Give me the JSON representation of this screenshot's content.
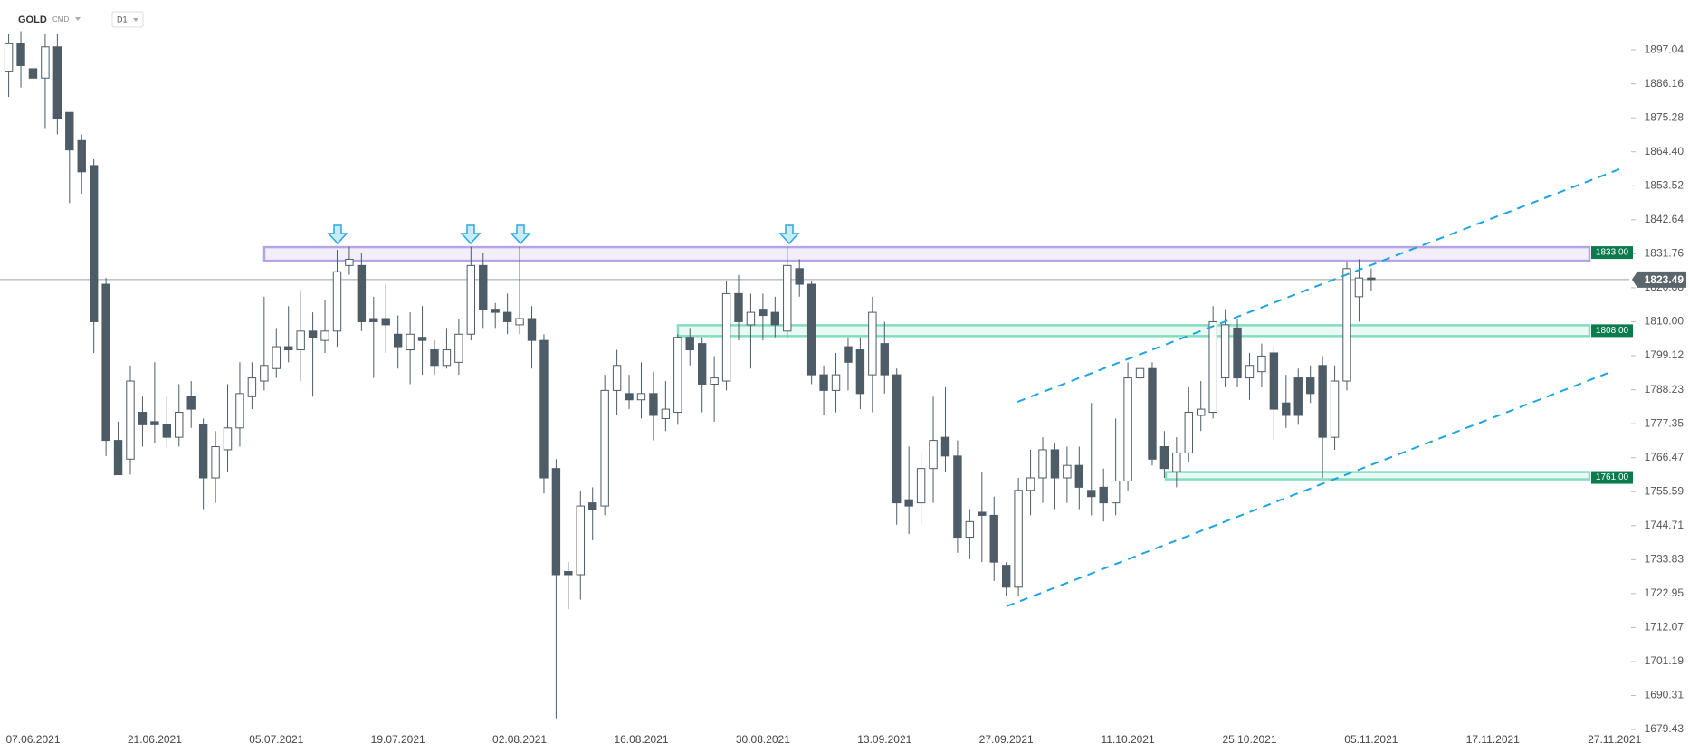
{
  "chart_data": {
    "type": "candlestick",
    "symbol": "GOLD",
    "market": "CMD",
    "timeframe": "D1",
    "categories": [
      null,
      null,
      "07.06.2021",
      null,
      null,
      null,
      null,
      null,
      null,
      null,
      null,
      null,
      "21.06.2021",
      null,
      null,
      null,
      null,
      null,
      null,
      null,
      null,
      null,
      "05.07.2021",
      null,
      null,
      null,
      null,
      null,
      null,
      null,
      null,
      null,
      "19.07.2021",
      null,
      null,
      null,
      null,
      null,
      null,
      null,
      null,
      null,
      "02.08.2021",
      null,
      null,
      null,
      null,
      null,
      null,
      null,
      null,
      null,
      "16.08.2021",
      null,
      null,
      null,
      null,
      null,
      null,
      null,
      null,
      null,
      "30.08.2021",
      null,
      null,
      null,
      null,
      null,
      null,
      null,
      null,
      null,
      "13.09.2021",
      null,
      null,
      null,
      null,
      null,
      null,
      null,
      null,
      null,
      "27.09.2021",
      null,
      null,
      null,
      null,
      null,
      null,
      null,
      null,
      null,
      "11.10.2021",
      null,
      null,
      null,
      null,
      null,
      null,
      null,
      null,
      null,
      "25.10.2021",
      null,
      null,
      null,
      null,
      null,
      null,
      null,
      null,
      null,
      "05.11.2021",
      null,
      null,
      null,
      null,
      null,
      null,
      null,
      null,
      null,
      "17.11.2021",
      null,
      null,
      null,
      null,
      null,
      null,
      null,
      null,
      null,
      "27.11.2021"
    ],
    "open": [
      1890,
      1899,
      1891,
      1888,
      1898,
      1877,
      1868,
      1860,
      1822,
      1772,
      1766,
      1781,
      1778,
      1777,
      1773,
      1786,
      1777,
      1760,
      1769,
      1776,
      1786,
      1791,
      1795,
      1802,
      1801,
      1807,
      1804,
      1807,
      1828,
      1828,
      1811,
      1811,
      1806,
      1801,
      1805,
      1801,
      1796,
      1797,
      1806,
      1828,
      1814,
      1813,
      1809,
      1811,
      1804,
      1763,
      1730,
      1729,
      1752,
      1751,
      1788,
      1787,
      1785,
      1787,
      1779,
      1781,
      1805,
      1803,
      1790,
      1791,
      1819,
      1809,
      1814,
      1813,
      1807,
      1827,
      1822,
      1793,
      1788,
      1802,
      1801,
      1793,
      1803,
      1793,
      1753,
      1752,
      1763,
      1773,
      1767,
      1741,
      1749,
      1748,
      1732,
      1725,
      1756,
      1760,
      1769,
      1760,
      1764,
      1756,
      1757,
      1752,
      1759,
      1792,
      1795,
      1770,
      1762,
      1768,
      1780,
      1781,
      1792,
      1808,
      1792,
      1794,
      1800,
      1784,
      1792,
      1792,
      1796,
      1773,
      1791,
      1818,
      1824,
      null,
      null,
      null,
      null,
      null,
      null,
      null,
      null,
      null,
      null,
      null,
      null,
      null,
      null,
      null,
      null,
      null,
      null,
      null,
      null
    ],
    "high": [
      1902,
      1903,
      1896,
      1902,
      1902,
      1877,
      1870,
      1862,
      1824,
      1778,
      1796,
      1786,
      1797,
      1786,
      1790,
      1791,
      1779,
      1775,
      1790,
      1797,
      1797,
      1818,
      1808,
      1815,
      1820,
      1813,
      1817,
      1833,
      1834,
      1832,
      1818,
      1822,
      1812,
      1813,
      1815,
      1804,
      1808,
      1811,
      1834,
      1832,
      1816,
      1819,
      1834,
      1815,
      1806,
      1766,
      1733,
      1756,
      1757,
      1793,
      1801,
      1793,
      1797,
      1794,
      1791,
      1806,
      1808,
      1805,
      1799,
      1823,
      1825,
      1819,
      1819,
      1818,
      1834,
      1830,
      1823,
      1796,
      1800,
      1805,
      1805,
      1818,
      1810,
      1795,
      1770,
      1768,
      1786,
      1789,
      1772,
      1750,
      1762,
      1754,
      1733,
      1760,
      1769,
      1773,
      1771,
      1770,
      1770,
      1784,
      1763,
      1779,
      1797,
      1801,
      1797,
      1775,
      1773,
      1789,
      1791,
      1815,
      1814,
      1811,
      1800,
      1803,
      1802,
      1793,
      1795,
      1796,
      1799,
      1796,
      1829,
      1830,
      1827,
      null,
      null,
      null,
      null,
      null,
      null,
      null,
      null,
      null,
      null,
      null,
      null,
      null,
      null,
      null,
      null,
      null,
      null,
      null,
      null
    ],
    "low": [
      1882,
      1885,
      1884,
      1872,
      1870,
      1848,
      1851,
      1800,
      1767,
      1761,
      1761,
      1770,
      1771,
      1770,
      1770,
      1776,
      1750,
      1752,
      1762,
      1770,
      1782,
      1788,
      1792,
      1797,
      1791,
      1786,
      1800,
      1802,
      1825,
      1807,
      1792,
      1800,
      1795,
      1790,
      1793,
      1793,
      1795,
      1793,
      1804,
      1808,
      1808,
      1806,
      1806,
      1795,
      1755,
      1683,
      1718,
      1721,
      1740,
      1748,
      1780,
      1782,
      1779,
      1772,
      1775,
      1777,
      1796,
      1781,
      1778,
      1788,
      1804,
      1795,
      1804,
      1805,
      1805,
      1818,
      1790,
      1780,
      1781,
      1788,
      1782,
      1781,
      1787,
      1745,
      1742,
      1745,
      1752,
      1762,
      1736,
      1734,
      1733,
      1727,
      1722,
      1722,
      1748,
      1752,
      1750,
      1752,
      1750,
      1748,
      1746,
      1748,
      1756,
      1786,
      1764,
      1760,
      1757,
      1765,
      1775,
      1779,
      1789,
      1789,
      1785,
      1789,
      1772,
      1776,
      1777,
      1784,
      1760,
      1769,
      1788,
      1810,
      1820,
      null,
      null,
      null,
      null,
      null,
      null,
      null,
      null,
      null,
      null,
      null,
      null,
      null,
      null,
      null,
      null,
      null,
      null,
      null,
      null
    ],
    "close": [
      1899,
      1892,
      1888,
      1898,
      1875,
      1865,
      1858,
      1810,
      1772,
      1761,
      1791,
      1777,
      1777,
      1773,
      1781,
      1782,
      1760,
      1770,
      1776,
      1787,
      1792,
      1796,
      1802,
      1801,
      1807,
      1805,
      1807,
      1826,
      1830,
      1810,
      1810,
      1809,
      1802,
      1806,
      1804,
      1796,
      1801,
      1806,
      1828,
      1814,
      1813,
      1810,
      1811,
      1804,
      1760,
      1729,
      1729,
      1751,
      1750,
      1788,
      1796,
      1785,
      1787,
      1780,
      1782,
      1805,
      1801,
      1790,
      1792,
      1819,
      1810,
      1813,
      1812,
      1809,
      1828,
      1822,
      1793,
      1788,
      1793,
      1797,
      1787,
      1813,
      1793,
      1752,
      1751,
      1763,
      1772,
      1767,
      1741,
      1746,
      1748,
      1733,
      1725,
      1756,
      1760,
      1769,
      1760,
      1764,
      1757,
      1754,
      1752,
      1759,
      1792,
      1795,
      1766,
      1763,
      1768,
      1781,
      1782,
      1810,
      1809,
      1792,
      1796,
      1799,
      1782,
      1780,
      1780,
      1787,
      1773,
      1791,
      1827,
      1824,
      1823.49,
      null,
      null,
      null,
      null,
      null,
      null,
      null,
      null,
      null,
      null,
      null,
      null,
      null,
      null,
      null,
      null,
      null,
      null,
      null,
      null
    ],
    "up_color": "#ffffff",
    "down_color": "#4d5c66",
    "wick_color": "#4d5c66",
    "ylim": [
      1678,
      1913
    ],
    "yticks": [
      1679.43,
      1690.31,
      1701.19,
      1712.07,
      1722.95,
      1733.83,
      1744.71,
      1755.59,
      1766.47,
      1777.35,
      1788.23,
      1799.12,
      {
        "value": 1810,
        "label": "1810.00"
      },
      1820.88,
      1831.76,
      1842.64,
      1853.52,
      {
        "value": 1864.4,
        "label": "1864.40"
      },
      1875.28,
      1886.16,
      1897.04
    ],
    "levels": [
      {
        "value": 1833,
        "label": "1833.00",
        "color": "#b7a4e4"
      },
      {
        "value": 1808,
        "label": "1808.00",
        "color": "#84dcc0"
      },
      {
        "value": 1761,
        "label": "1761.00",
        "color": "#84dcc0"
      }
    ],
    "level_label_color": "#0b7a4c",
    "last_price": 1823.49,
    "last_price_color": "#5b656c",
    "trendline_color": "#1ea4e3"
  }
}
